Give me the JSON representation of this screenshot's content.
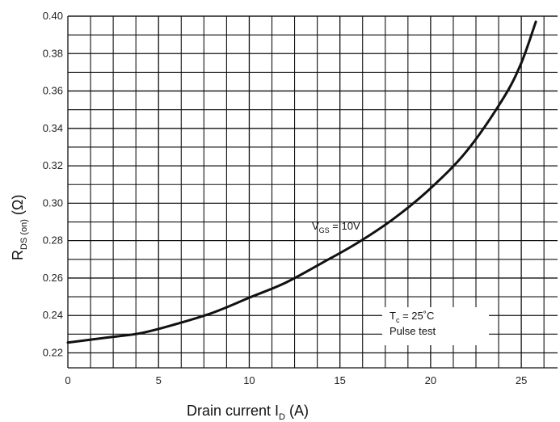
{
  "chart_data": {
    "type": "line",
    "xlabel": {
      "main": "Drain current I",
      "sub": "D",
      "unit": " (A)"
    },
    "ylabel": {
      "main": "R",
      "sub": "DS (on)",
      "unit": " (Ω)"
    },
    "xlim": [
      0,
      27
    ],
    "ylim": [
      0.212,
      0.4
    ],
    "x_ticks": [
      "0",
      "5",
      "10",
      "15",
      "20",
      "25"
    ],
    "x_tick_values": [
      0,
      5,
      10,
      15,
      20,
      25
    ],
    "y_ticks": [
      "0.22",
      "0.24",
      "0.26",
      "0.28",
      "0.30",
      "0.32",
      "0.34",
      "0.36",
      "0.38",
      "0.40"
    ],
    "y_tick_values": [
      0.22,
      0.24,
      0.26,
      0.28,
      0.3,
      0.32,
      0.34,
      0.36,
      0.38,
      0.4
    ],
    "grid": true,
    "series": [
      {
        "x": [
          0,
          2,
          4,
          6,
          8,
          10,
          12,
          14,
          16,
          18,
          20,
          22,
          24,
          25,
          25.8
        ],
        "values": [
          0.2255,
          0.228,
          0.2305,
          0.2355,
          0.2415,
          0.2495,
          0.2575,
          0.268,
          0.279,
          0.292,
          0.308,
          0.328,
          0.356,
          0.375,
          0.397
        ]
      }
    ],
    "annotations": {
      "vgs": {
        "main": "V",
        "sub": "GS",
        "rest": " = 10V"
      },
      "temp": {
        "main": "T",
        "sub": "c",
        "rest": " = 25˚C"
      },
      "pulse": "Pulse test"
    },
    "colors": {
      "line": "#111111",
      "grid": "#111111",
      "background": "#ffffff"
    }
  }
}
